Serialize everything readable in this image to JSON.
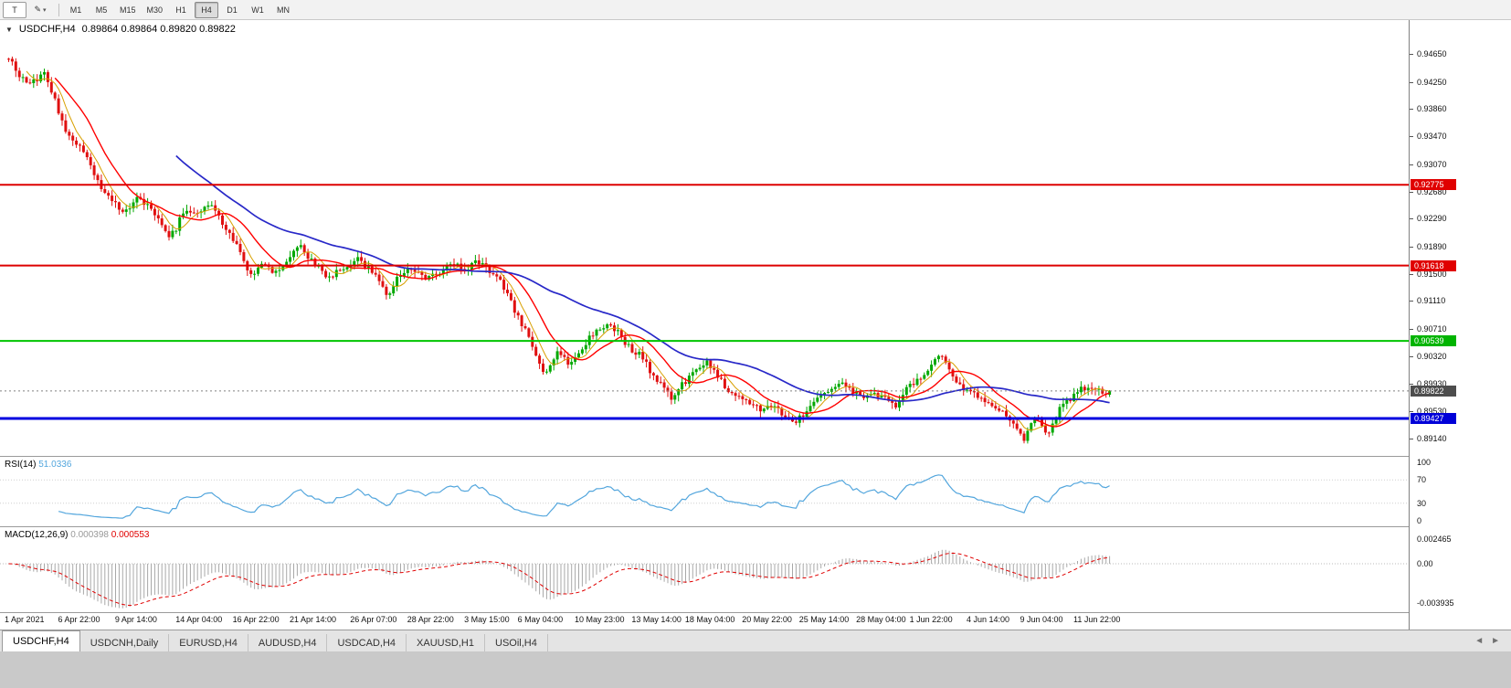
{
  "icons": {
    "collapse": "▼",
    "pencil": "✎",
    "dropdown": "▾",
    "tab_prev": "◄",
    "tab_next": "►"
  },
  "toolbar": {
    "chart_type_label": "T",
    "timeframes": [
      "M1",
      "M5",
      "M15",
      "M30",
      "H1",
      "H4",
      "D1",
      "W1",
      "MN"
    ],
    "active_timeframe": "H4"
  },
  "title": {
    "symbol": "USDCHF,H4",
    "ohlc": "0.89864 0.89864 0.89820 0.89822"
  },
  "tabs": [
    {
      "label": "USDCHF,H4",
      "active": true
    },
    {
      "label": "USDCNH,Daily",
      "active": false
    },
    {
      "label": "EURUSD,H4",
      "active": false
    },
    {
      "label": "AUDUSD,H4",
      "active": false
    },
    {
      "label": "USDCAD,H4",
      "active": false
    },
    {
      "label": "XAUUSD,H1",
      "active": false
    },
    {
      "label": "USOil,H4",
      "active": false
    }
  ],
  "chart_data": {
    "type": "candlestick",
    "symbol": "USDCHF",
    "timeframe": "H4",
    "bars_total": 310,
    "colors": {
      "up": "#00a800",
      "down": "#e01010",
      "rsi": "#53a6dd",
      "macd_hist": "#a8a8a8",
      "macd_signal": "#e00000",
      "bid_line": "#808080"
    },
    "y_axis_ticks": [
      "0.94650",
      "0.94250",
      "0.93860",
      "0.93470",
      "0.93070",
      "0.92680",
      "0.92290",
      "0.91890",
      "0.91500",
      "0.91110",
      "0.90710",
      "0.90320",
      "0.89930",
      "0.89530",
      "0.89140"
    ],
    "x_axis_labels": [
      {
        "bar": 0,
        "label": "1 Apr 2021"
      },
      {
        "bar": 15,
        "label": "6 Apr 22:00"
      },
      {
        "bar": 31,
        "label": "9 Apr 14:00"
      },
      {
        "bar": 48,
        "label": "14 Apr 04:00"
      },
      {
        "bar": 64,
        "label": "16 Apr 22:00"
      },
      {
        "bar": 80,
        "label": "21 Apr 14:00"
      },
      {
        "bar": 97,
        "label": "26 Apr 07:00"
      },
      {
        "bar": 113,
        "label": "28 Apr 22:00"
      },
      {
        "bar": 129,
        "label": "3 May 15:00"
      },
      {
        "bar": 144,
        "label": "6 May 04:00"
      },
      {
        "bar": 160,
        "label": "10 May 23:00"
      },
      {
        "bar": 176,
        "label": "13 May 14:00"
      },
      {
        "bar": 191,
        "label": "18 May 04:00"
      },
      {
        "bar": 207,
        "label": "20 May 22:00"
      },
      {
        "bar": 223,
        "label": "25 May 14:00"
      },
      {
        "bar": 239,
        "label": "28 May 04:00"
      },
      {
        "bar": 254,
        "label": "1 Jun 22:00"
      },
      {
        "bar": 270,
        "label": "4 Jun 14:00"
      },
      {
        "bar": 285,
        "label": "9 Jun 04:00"
      },
      {
        "bar": 300,
        "label": "11 Jun 22:00"
      }
    ],
    "hlines": [
      {
        "price": 0.92775,
        "label": "0.92775",
        "color": "#dd0000",
        "tag_color": "#e00000",
        "width": 2
      },
      {
        "price": 0.91618,
        "label": "0.91618",
        "color": "#dd0000",
        "tag_color": "#e00000",
        "width": 2
      },
      {
        "price": 0.90539,
        "label": "0.90539",
        "color": "#00c400",
        "tag_color": "#00b400",
        "width": 2
      },
      {
        "price": 0.89427,
        "label": "0.89427",
        "color": "#0000e0",
        "tag_color": "#0000d8",
        "width": 3
      }
    ],
    "current_price": {
      "value": 0.89822,
      "label": "0.89822",
      "tag_color": "#4d4d4d"
    },
    "moving_averages": [
      {
        "period": 6,
        "color": "#d8a000",
        "width": 1
      },
      {
        "period": 14,
        "color": "#ff0000",
        "width": 1.4
      },
      {
        "period": 48,
        "color": "#2828c8",
        "width": 1.7
      }
    ],
    "rsi": {
      "name": "RSI(14)",
      "value": "51.0336",
      "period": 14,
      "levels": [
        70,
        30
      ],
      "ticks": [
        "100",
        "70",
        "30",
        "0"
      ]
    },
    "macd": {
      "name": "MACD(12,26,9)",
      "main_value": "0.000398",
      "signal_value": "0.000553",
      "fast": 12,
      "slow": 26,
      "signal": 9,
      "ticks": [
        "0.002465",
        "0.00",
        "-0.003935"
      ]
    },
    "price_path_anchors": [
      [
        0,
        0.9458
      ],
      [
        2,
        0.9442
      ],
      [
        5,
        0.942
      ],
      [
        8,
        0.9428
      ],
      [
        10,
        0.9436
      ],
      [
        13,
        0.9398
      ],
      [
        16,
        0.9352
      ],
      [
        19,
        0.9338
      ],
      [
        22,
        0.932
      ],
      [
        25,
        0.9282
      ],
      [
        28,
        0.9258
      ],
      [
        31,
        0.9245
      ],
      [
        33,
        0.9238
      ],
      [
        36,
        0.9262
      ],
      [
        39,
        0.9248
      ],
      [
        42,
        0.9228
      ],
      [
        45,
        0.9202
      ],
      [
        47,
        0.9215
      ],
      [
        49,
        0.924
      ],
      [
        53,
        0.9236
      ],
      [
        57,
        0.9248
      ],
      [
        61,
        0.9217
      ],
      [
        64,
        0.9192
      ],
      [
        67,
        0.9155
      ],
      [
        69,
        0.9148
      ],
      [
        71,
        0.9167
      ],
      [
        75,
        0.9152
      ],
      [
        79,
        0.9177
      ],
      [
        82,
        0.9187
      ],
      [
        86,
        0.9162
      ],
      [
        90,
        0.9145
      ],
      [
        94,
        0.916
      ],
      [
        98,
        0.9172
      ],
      [
        102,
        0.9152
      ],
      [
        105,
        0.913
      ],
      [
        107,
        0.9118
      ],
      [
        109,
        0.9146
      ],
      [
        113,
        0.9158
      ],
      [
        117,
        0.9142
      ],
      [
        121,
        0.9152
      ],
      [
        125,
        0.9163
      ],
      [
        129,
        0.9155
      ],
      [
        131,
        0.9168
      ],
      [
        134,
        0.9158
      ],
      [
        137,
        0.9148
      ],
      [
        140,
        0.912
      ],
      [
        143,
        0.9088
      ],
      [
        146,
        0.9058
      ],
      [
        149,
        0.9018
      ],
      [
        151,
        0.9008
      ],
      [
        154,
        0.9036
      ],
      [
        157,
        0.9022
      ],
      [
        160,
        0.9034
      ],
      [
        162,
        0.9052
      ],
      [
        165,
        0.9068
      ],
      [
        168,
        0.908
      ],
      [
        171,
        0.9065
      ],
      [
        174,
        0.9045
      ],
      [
        177,
        0.9035
      ],
      [
        180,
        0.9012
      ],
      [
        183,
        0.899
      ],
      [
        186,
        0.8972
      ],
      [
        188,
        0.8986
      ],
      [
        191,
        0.9
      ],
      [
        194,
        0.9018
      ],
      [
        196,
        0.9028
      ],
      [
        199,
        0.9002
      ],
      [
        202,
        0.8984
      ],
      [
        205,
        0.8972
      ],
      [
        208,
        0.8964
      ],
      [
        211,
        0.8956
      ],
      [
        214,
        0.8962
      ],
      [
        217,
        0.895
      ],
      [
        220,
        0.8938
      ],
      [
        223,
        0.8946
      ],
      [
        226,
        0.897
      ],
      [
        229,
        0.8975
      ],
      [
        232,
        0.8986
      ],
      [
        234,
        0.8994
      ],
      [
        237,
        0.8982
      ],
      [
        240,
        0.8972
      ],
      [
        243,
        0.8975
      ],
      [
        246,
        0.8972
      ],
      [
        249,
        0.8962
      ],
      [
        252,
        0.8984
      ],
      [
        255,
        0.8996
      ],
      [
        258,
        0.9012
      ],
      [
        261,
        0.9032
      ],
      [
        263,
        0.9026
      ],
      [
        265,
        0.9
      ],
      [
        268,
        0.8984
      ],
      [
        271,
        0.8978
      ],
      [
        274,
        0.897
      ],
      [
        277,
        0.8958
      ],
      [
        280,
        0.895
      ],
      [
        283,
        0.8926
      ],
      [
        285,
        0.8912
      ],
      [
        288,
        0.8944
      ],
      [
        290,
        0.893
      ],
      [
        292,
        0.892
      ],
      [
        295,
        0.8958
      ],
      [
        298,
        0.8972
      ],
      [
        301,
        0.8985
      ],
      [
        304,
        0.8988
      ],
      [
        307,
        0.8978
      ],
      [
        309,
        0.89822
      ]
    ]
  }
}
